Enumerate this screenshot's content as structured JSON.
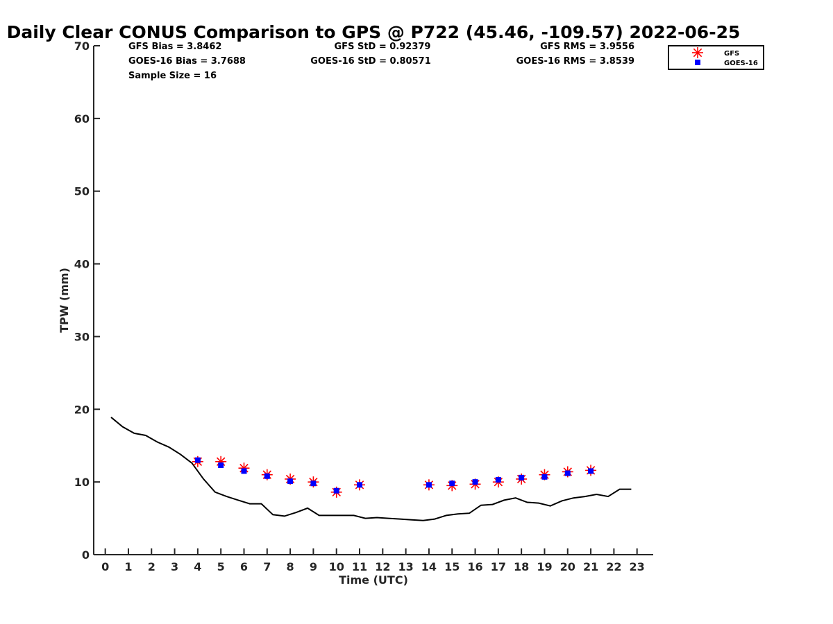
{
  "title": "Daily Clear CONUS Comparison to GPS @ P722 (45.46, -109.57) 2022-06-25",
  "stats": {
    "gfs_bias": "GFS Bias = 3.8462",
    "goes_bias": "GOES-16 Bias = 3.7688",
    "sample_size": "Sample Size = 16",
    "gfs_std": "GFS StD = 0.92379",
    "goes_std": "GOES-16 StD = 0.80571",
    "gfs_rms": "GFS RMS = 3.9556",
    "goes_rms": "GOES-16 RMS = 3.8539"
  },
  "legend": {
    "gfs": "GFS",
    "goes": "GOES-16"
  },
  "colors": {
    "gfs": "#ff0000",
    "goes": "#0000ff",
    "gps": "#000000"
  },
  "chart_data": {
    "type": "scatter",
    "xlabel": "Time (UTC)",
    "ylabel": "TPW (mm)",
    "xlim": [
      -0.5,
      23.7
    ],
    "ylim": [
      0,
      70
    ],
    "xticks": [
      0,
      1,
      2,
      3,
      4,
      5,
      6,
      7,
      8,
      9,
      10,
      11,
      12,
      13,
      14,
      15,
      16,
      17,
      18,
      19,
      20,
      21,
      22,
      23
    ],
    "yticks": [
      0,
      10,
      20,
      30,
      40,
      50,
      60,
      70
    ],
    "grid": false,
    "legend_position": "top-right",
    "series": [
      {
        "name": "GFS",
        "marker": "asterisk",
        "x": [
          4,
          5,
          6,
          7,
          8,
          9,
          10,
          11,
          14,
          15,
          16,
          17,
          18,
          19,
          20,
          21
        ],
        "y": [
          12.8,
          12.8,
          11.9,
          11.0,
          10.4,
          10.0,
          8.6,
          9.6,
          9.6,
          9.5,
          9.7,
          10.0,
          10.4,
          11.0,
          11.4,
          11.6
        ]
      },
      {
        "name": "GOES-16",
        "marker": "square",
        "x": [
          4,
          5,
          6,
          7,
          8,
          9,
          10,
          11,
          14,
          15,
          16,
          17,
          18,
          19,
          20,
          21
        ],
        "y": [
          13.0,
          12.3,
          11.5,
          10.8,
          10.1,
          9.8,
          8.8,
          9.6,
          9.6,
          9.8,
          10.0,
          10.3,
          10.6,
          10.7,
          11.2,
          11.5
        ]
      },
      {
        "marker": "line",
        "x": [
          0.25,
          0.75,
          1.25,
          1.75,
          2.25,
          2.75,
          3.25,
          3.75,
          4.25,
          4.75,
          5.25,
          5.75,
          6.25,
          6.75,
          7.25,
          7.75,
          8.25,
          8.75,
          9.25,
          9.75,
          10.25,
          10.75,
          11.25,
          11.75,
          12.25,
          12.75,
          13.25,
          13.75,
          14.25,
          14.75,
          15.25,
          15.75,
          16.25,
          16.75,
          17.25,
          17.75,
          18.25,
          18.75,
          19.25,
          19.75,
          20.25,
          20.75,
          21.25,
          21.75,
          22.25,
          22.75
        ],
        "y": [
          18.9,
          17.6,
          16.7,
          16.4,
          15.5,
          14.8,
          13.8,
          12.6,
          10.4,
          8.6,
          8.0,
          7.5,
          7.0,
          7.0,
          5.5,
          5.3,
          5.8,
          6.4,
          5.4,
          5.4,
          5.4,
          5.4,
          5.0,
          5.1,
          5.0,
          4.9,
          4.8,
          4.7,
          4.9,
          5.4,
          5.6,
          5.7,
          6.8,
          6.9,
          7.5,
          7.8,
          7.2,
          7.1,
          6.7,
          7.4,
          7.8,
          8.0,
          8.3,
          8.0,
          9.0,
          9.0
        ]
      }
    ]
  }
}
